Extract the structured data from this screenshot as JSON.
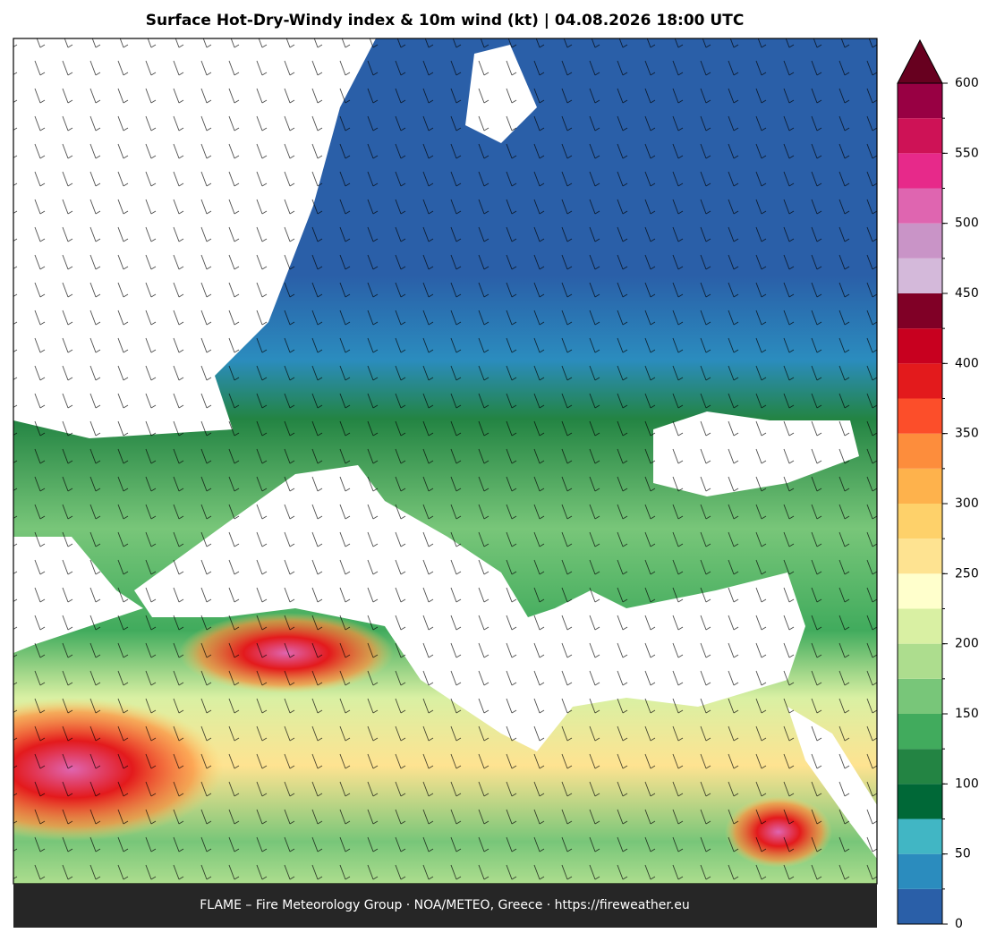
{
  "title": "Surface Hot-Dry-Windy index & 10m wind (kt)  |  04.08.2026 18:00 UTC",
  "footer": "FLAME – Fire Meteorology Group · NOA/METEO, Greece · https://fireweather.eu",
  "colorbar": {
    "lim": [
      0,
      600
    ],
    "ticks": [
      0,
      50,
      100,
      150,
      200,
      250,
      300,
      350,
      400,
      450,
      500,
      550,
      600
    ],
    "levels": [
      0,
      25,
      50,
      75,
      100,
      125,
      150,
      175,
      200,
      225,
      250,
      275,
      300,
      325,
      350,
      375,
      400,
      425,
      450,
      475,
      500,
      525,
      550,
      575,
      600
    ],
    "colors": [
      "#2a5fa8",
      "#2b8cbe",
      "#41b6c4",
      "#006837",
      "#238443",
      "#41ab5d",
      "#78c679",
      "#addd8e",
      "#d9f0a3",
      "#ffffcc",
      "#fee391",
      "#fed16a",
      "#feb24c",
      "#fd8d3c",
      "#fc4e2a",
      "#e31a1c",
      "#c8001f",
      "#800026",
      "#d4b9da",
      "#c994c7",
      "#df65b0",
      "#e7298a",
      "#ce1256",
      "#980043"
    ],
    "extend_color": "#67001f"
  }
}
